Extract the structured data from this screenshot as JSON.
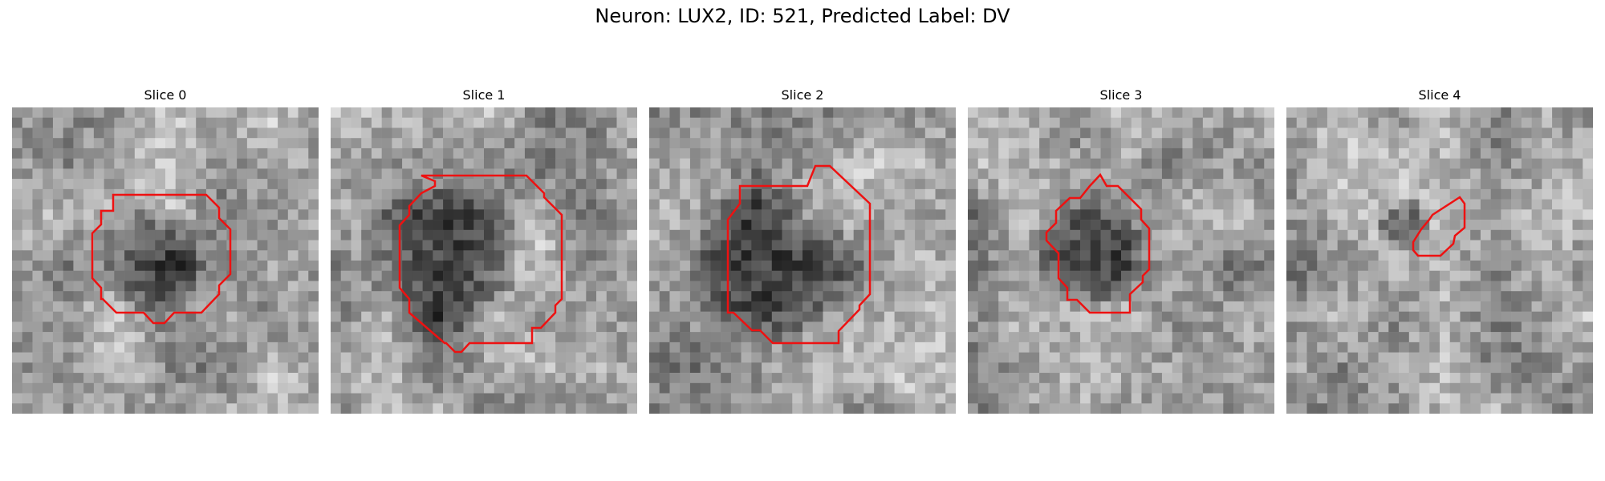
{
  "figure": {
    "title": "Neuron: LUX2, ID: 521, Predicted Label: DV",
    "contour_color": "#ee1111",
    "colormap": "gray"
  },
  "panels": [
    {
      "title": "Slice 0",
      "seed": 11,
      "contour_shape": "octagon-small"
    },
    {
      "title": "Slice 1",
      "seed": 23,
      "contour_shape": "octagon-large"
    },
    {
      "title": "Slice 2",
      "seed": 37,
      "contour_shape": "octagon-large"
    },
    {
      "title": "Slice 3",
      "seed": 41,
      "contour_shape": "polygon-irregular"
    },
    {
      "title": "Slice 4",
      "seed": 59,
      "contour_shape": "sliver"
    }
  ]
}
